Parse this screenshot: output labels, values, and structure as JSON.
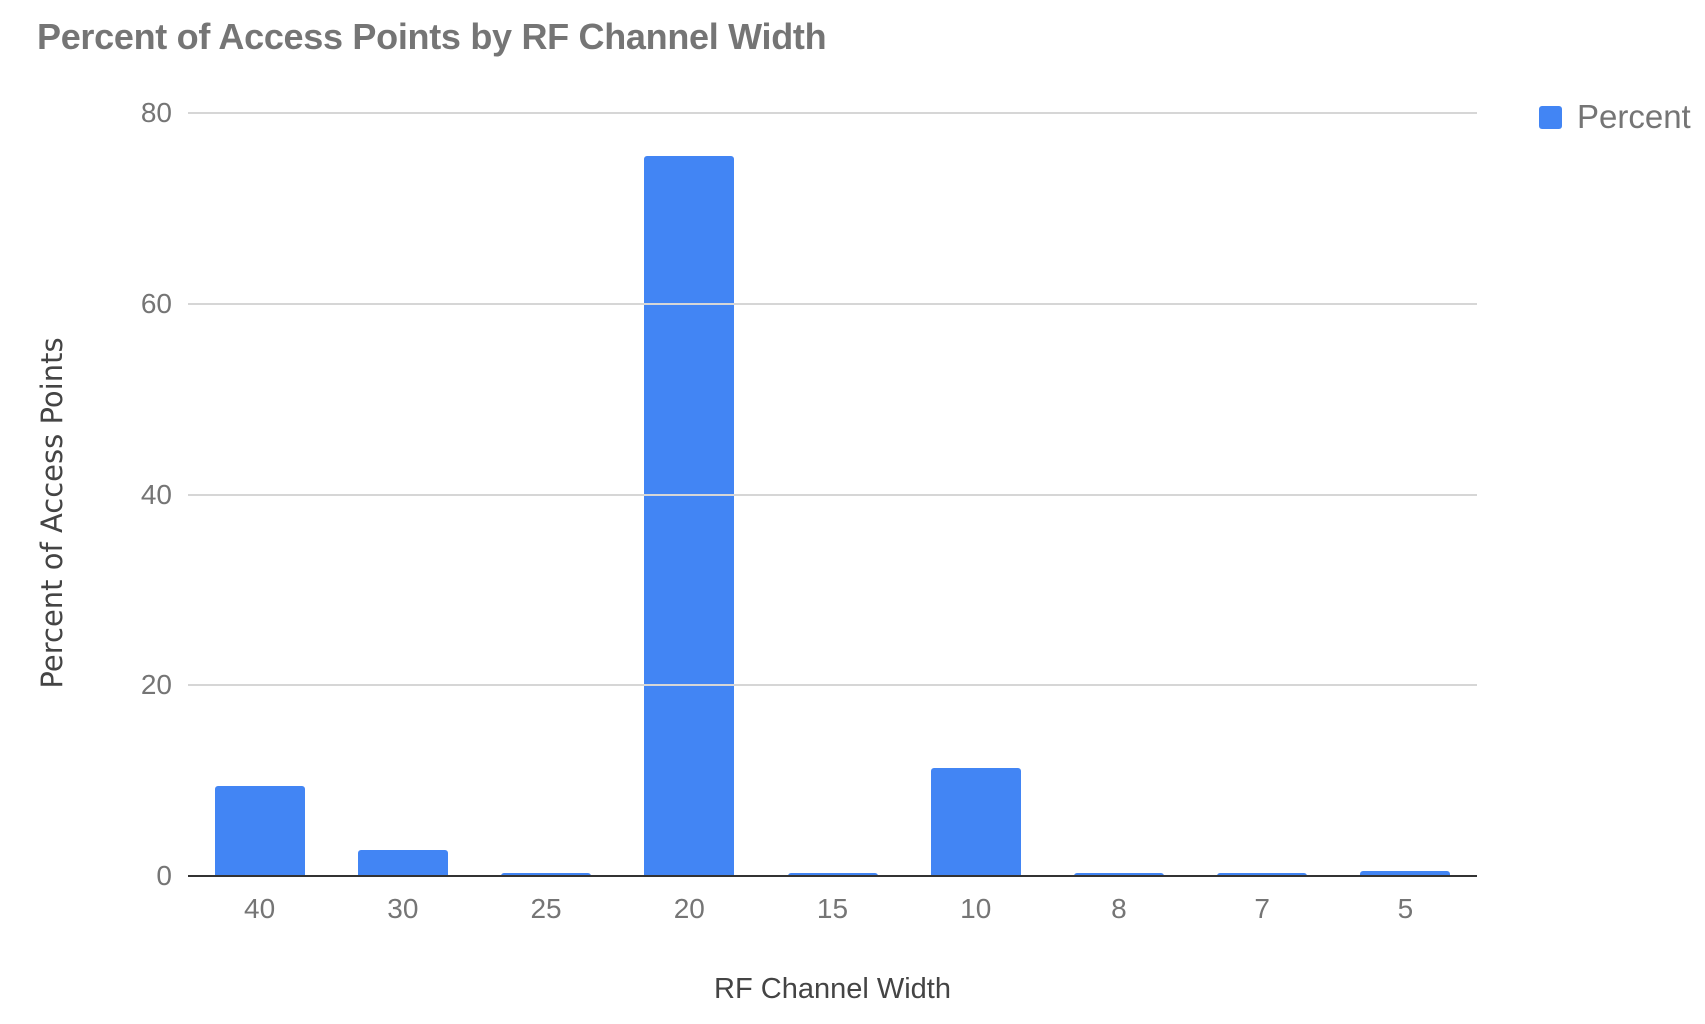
{
  "chart_data": {
    "type": "bar",
    "title": "Percent of Access Points by RF Channel Width",
    "xlabel": "RF Channel Width",
    "ylabel": "Percent of Access Points",
    "categories": [
      "40",
      "30",
      "25",
      "20",
      "15",
      "10",
      "8",
      "7",
      "5"
    ],
    "series": [
      {
        "name": "Percent",
        "color": "#4285f4",
        "values": [
          9.4,
          2.7,
          0.3,
          75.5,
          0.3,
          11.3,
          0.3,
          0.3,
          0.5
        ]
      }
    ],
    "ylim": [
      0,
      80
    ],
    "yticks": [
      "0",
      "20",
      "40",
      "60",
      "80"
    ],
    "grid": true,
    "legend_position": "right"
  },
  "colors": {
    "bar": "#4285f4",
    "title": "#757575",
    "grid": "#d6d6d6",
    "axis": "#333333"
  }
}
